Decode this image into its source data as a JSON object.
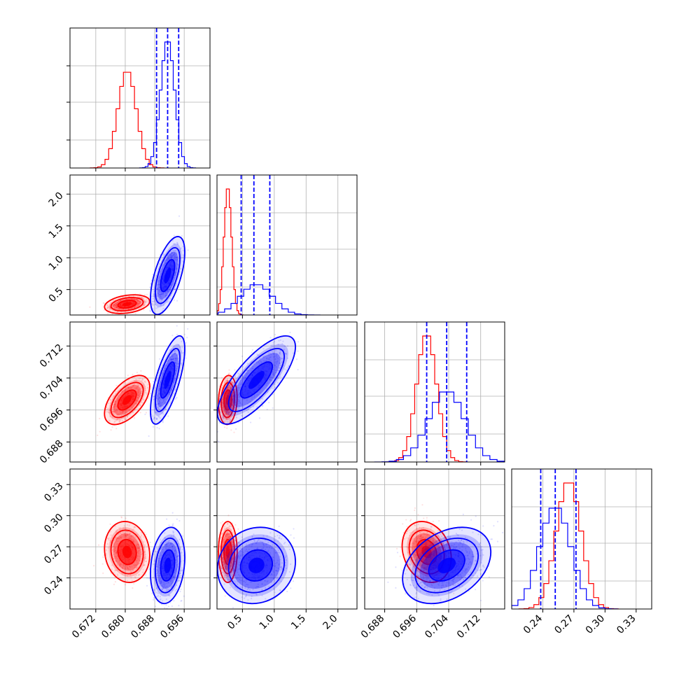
{
  "chart_data": {
    "type": "corner",
    "grid": true,
    "parameters": [
      {
        "range": [
          0.665,
          0.703
        ],
        "ticks": [
          "0.672",
          "0.680",
          "0.688",
          "0.696"
        ]
      },
      {
        "range": [
          0.1,
          2.3
        ],
        "ticks": [
          "0.5",
          "1.0",
          "1.5",
          "2.0"
        ]
      },
      {
        "range": [
          0.683,
          0.718
        ],
        "ticks": [
          "0.688",
          "0.696",
          "0.704",
          "0.712"
        ]
      },
      {
        "range": [
          0.21,
          0.345
        ],
        "ticks": [
          "0.24",
          "0.27",
          "0.30",
          "0.33"
        ]
      }
    ],
    "series": [
      {
        "color": "#ff0000",
        "means": [
          0.6805,
          0.27,
          0.6985,
          0.265
        ],
        "sigmas": [
          0.0025,
          0.06,
          0.0025,
          0.012
        ],
        "correlations": {
          "0-1": 0.3,
          "0-2": 0.55,
          "0-3": -0.1,
          "1-2": 0.1,
          "1-3": 0.0,
          "2-3": -0.2
        },
        "quantiles": null
      },
      {
        "color": "#0000ff",
        "means": [
          0.6915,
          0.72,
          0.7035,
          0.252
        ],
        "sigmas": [
          0.0019,
          0.25,
          0.0045,
          0.015
        ],
        "correlations": {
          "0-1": 0.6,
          "0-2": 0.7,
          "0-3": 0.2,
          "1-2": 0.75,
          "1-3": 0.1,
          "2-3": 0.35
        },
        "quantiles": [
          [
            0.6885,
            0.6915,
            0.6945
          ],
          [
            0.48,
            0.68,
            0.93
          ],
          [
            0.6985,
            0.7035,
            0.7085
          ],
          [
            0.238,
            0.252,
            0.272
          ]
        ]
      }
    ]
  }
}
